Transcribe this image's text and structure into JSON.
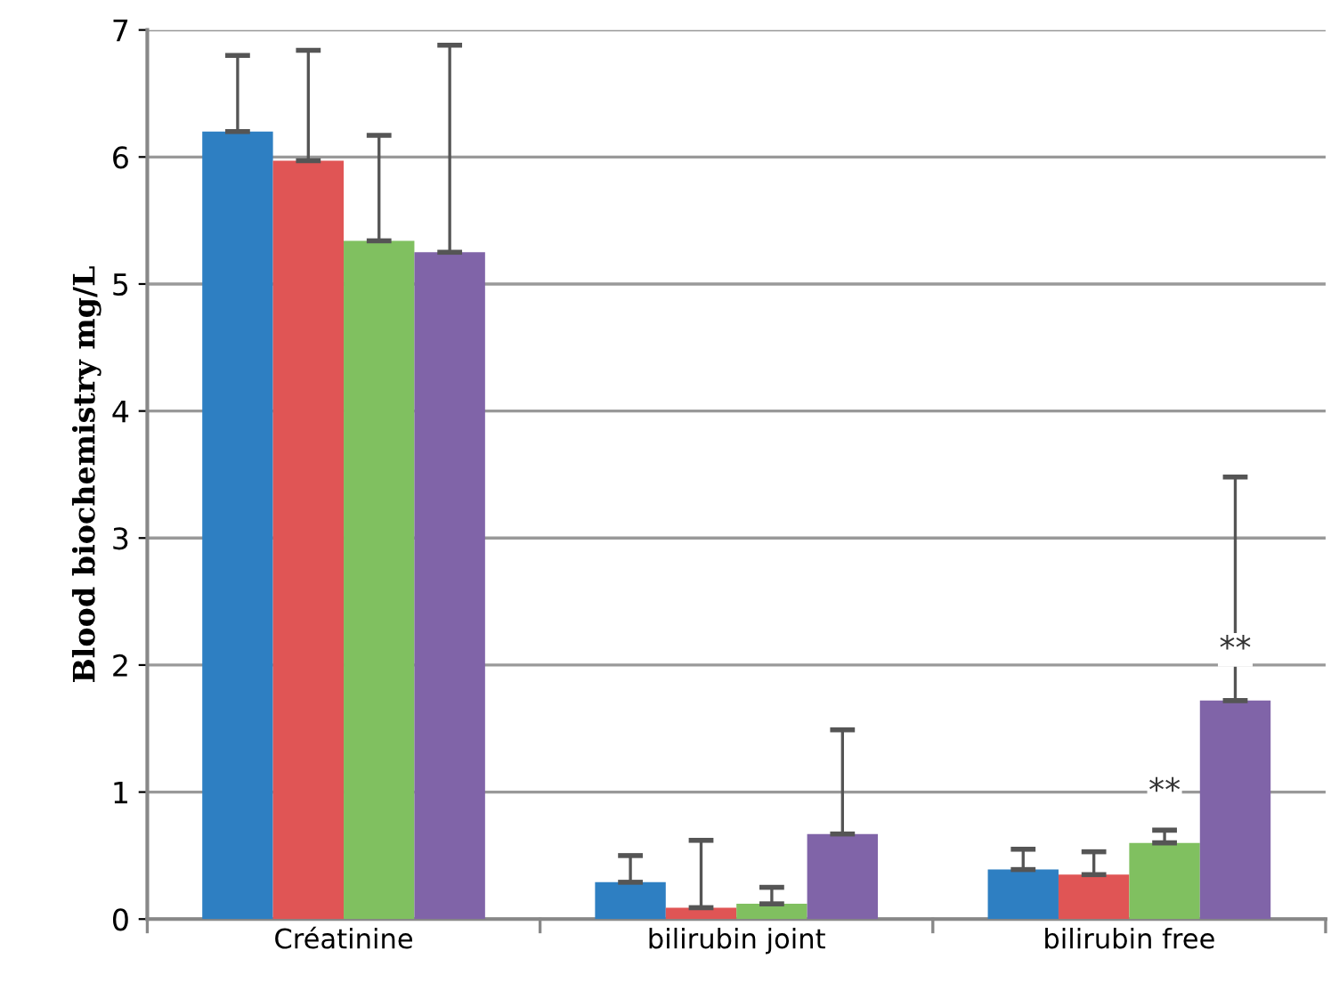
{
  "chart_data": {
    "type": "bar",
    "ylabel": "Blood biochemistry mg/L",
    "categories": [
      "Créatinine",
      "bilirubin joint",
      "bilirubin free"
    ],
    "series": [
      {
        "color": "#2e7fc2",
        "values": [
          6.2,
          0.29,
          0.39
        ],
        "errors": [
          [
            6.2,
            6.8
          ],
          [
            0.29,
            0.5
          ],
          [
            0.39,
            0.55
          ]
        ]
      },
      {
        "color": "#e05555",
        "values": [
          5.97,
          0.09,
          0.35
        ],
        "errors": [
          [
            5.97,
            6.84
          ],
          [
            0.09,
            0.62
          ],
          [
            0.35,
            0.53
          ]
        ]
      },
      {
        "color": "#80c060",
        "values": [
          5.34,
          0.12,
          0.6
        ],
        "errors": [
          [
            5.34,
            6.17
          ],
          [
            0.12,
            0.25
          ],
          [
            0.6,
            0.7
          ]
        ]
      },
      {
        "color": "#8064a8",
        "values": [
          5.25,
          0.67,
          1.72
        ],
        "errors": [
          [
            5.25,
            6.88
          ],
          [
            0.67,
            1.49
          ],
          [
            1.72,
            3.48
          ]
        ]
      }
    ],
    "annotations": [
      "**",
      "**"
    ],
    "ylim": [
      0,
      7
    ],
    "yticks": [
      0,
      1,
      2,
      3,
      4,
      5,
      6,
      7
    ],
    "grid": "y",
    "legend": false
  }
}
